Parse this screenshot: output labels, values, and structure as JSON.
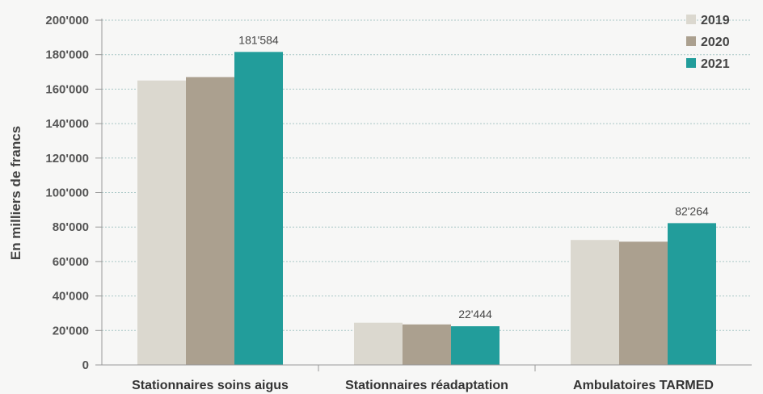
{
  "chart_data": {
    "type": "bar",
    "ylabel": "En milliers de francs",
    "ylim": [
      0,
      200000
    ],
    "yticks": [
      0,
      20000,
      40000,
      60000,
      80000,
      100000,
      120000,
      140000,
      160000,
      180000,
      200000
    ],
    "ytick_labels": [
      "0",
      "20'000",
      "40'000",
      "60'000",
      "80'000",
      "100'000",
      "120'000",
      "140'000",
      "160'000",
      "180'000",
      "200'000"
    ],
    "categories": [
      "Stationnaires soins aigus",
      "Stationnaires réadaptation",
      "Ambulatoires TARMED"
    ],
    "series": [
      {
        "name": "2019",
        "values": [
          165000,
          24500,
          72500
        ],
        "color": "#dbd8cf"
      },
      {
        "name": "2020",
        "values": [
          167000,
          23500,
          71500
        ],
        "color": "#aba08f"
      },
      {
        "name": "2021",
        "values": [
          181584,
          22444,
          82264
        ],
        "color": "#229d9b"
      }
    ],
    "data_labels": [
      {
        "series": 2,
        "category": 0,
        "text": "181'584"
      },
      {
        "series": 2,
        "category": 1,
        "text": "22'444"
      },
      {
        "series": 2,
        "category": 2,
        "text": "82'264"
      }
    ],
    "grid": true,
    "legend": "top-right"
  }
}
